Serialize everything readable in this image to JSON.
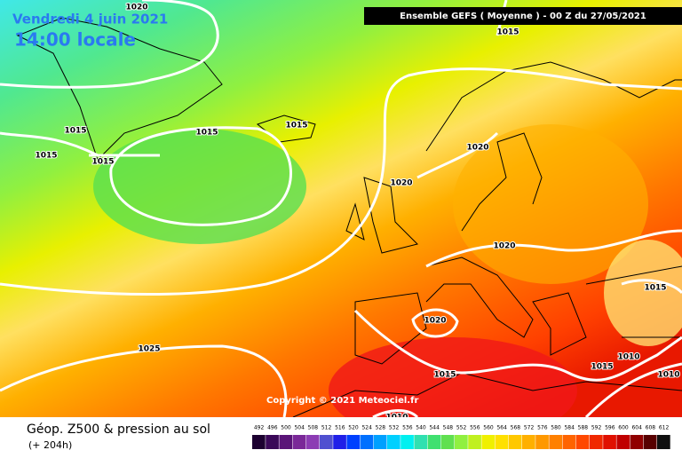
{
  "header": {
    "date": "Vendredi 4 juin 2021",
    "time": "14:00 locale",
    "run": "Ensemble GEFS  ( Moyenne )  - 00 Z du 27/05/2021"
  },
  "copyright": "Copyright © 2021 Meteociel.fr",
  "footer": {
    "title": "Géop. Z500 & pression au sol",
    "lead": "(+ 204h)"
  },
  "isobar_labels": [
    1020,
    1015,
    1015,
    1015,
    1015,
    1015,
    1015,
    1020,
    1020,
    1020,
    1020,
    1025,
    1015,
    1010,
    1015,
    1010,
    1010,
    1015
  ],
  "legend": {
    "values": [
      492,
      496,
      500,
      504,
      508,
      512,
      516,
      520,
      524,
      528,
      532,
      536,
      540,
      544,
      548,
      552,
      556,
      560,
      564,
      568,
      572,
      576,
      580,
      584,
      588,
      592,
      596,
      600,
      604,
      608,
      612
    ],
    "colors": [
      "#1c0030",
      "#3a0858",
      "#5a1478",
      "#7a2898",
      "#8c3cb4",
      "#5050d0",
      "#2020e8",
      "#0040ff",
      "#0070ff",
      "#00a0ff",
      "#00d0ff",
      "#00f0f0",
      "#30e0b0",
      "#40e070",
      "#60e050",
      "#90f040",
      "#c0f020",
      "#f0f000",
      "#ffe000",
      "#ffc800",
      "#ffb000",
      "#ff9800",
      "#ff8000",
      "#ff6400",
      "#ff4800",
      "#f02800",
      "#e01000",
      "#c00000",
      "#900000",
      "#580000",
      "#101010"
    ]
  }
}
